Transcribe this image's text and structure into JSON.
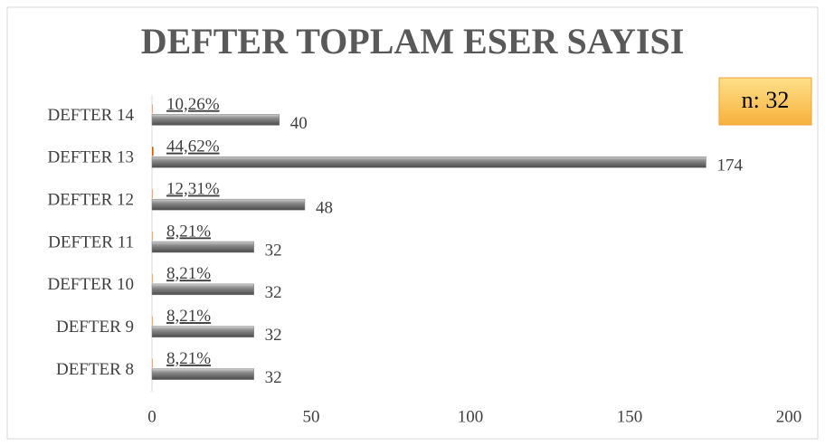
{
  "chart_data": {
    "type": "bar",
    "orientation": "horizontal",
    "title": "DEFTER TOPLAM ESER SAYISI",
    "annotation": "n: 32",
    "categories": [
      "DEFTER 8",
      "DEFTER 9",
      "DEFTER 10",
      "DEFTER 11",
      "DEFTER 12",
      "DEFTER 13",
      "DEFTER 14"
    ],
    "series": [
      {
        "color": "#7f7f7f",
        "values": [
          32,
          32,
          32,
          32,
          48,
          174,
          40
        ]
      },
      {
        "color": "#c55a11",
        "values": [
          0.0821,
          0.0821,
          0.0821,
          0.0821,
          0.1231,
          0.4462,
          0.1026
        ],
        "value_labels": [
          "8,21%",
          "8,21%",
          "8,21%",
          "8,21%",
          "12,31%",
          "44,62%",
          "10,26%"
        ]
      }
    ],
    "xlim": [
      0,
      200
    ],
    "xticks": [
      0,
      50,
      100,
      150,
      200
    ],
    "grid": false
  }
}
